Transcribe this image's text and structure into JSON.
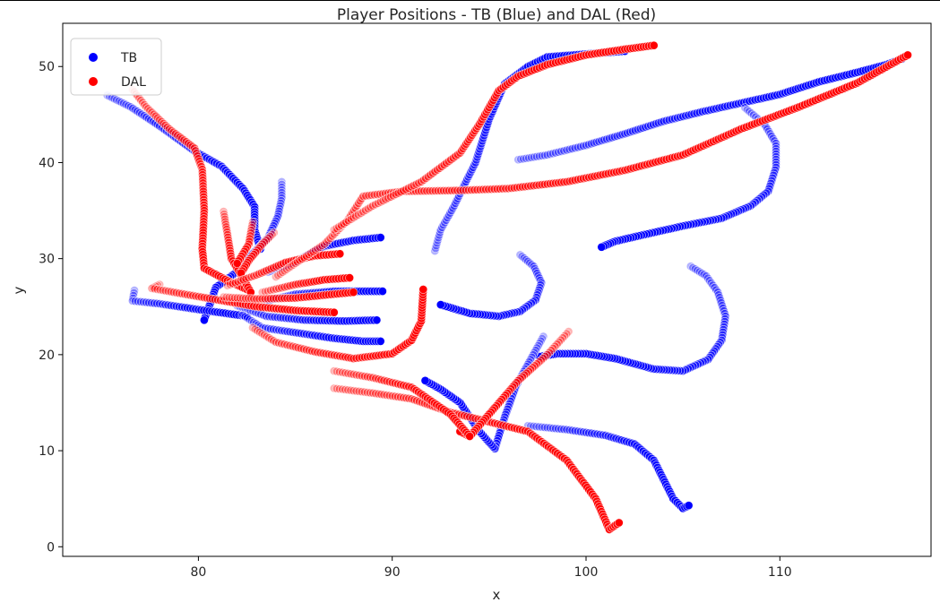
{
  "chart_data": {
    "type": "scatter",
    "title": "Player Positions - TB (Blue) and DAL (Red)",
    "xlabel": "x",
    "ylabel": "y",
    "xlim": [
      73,
      117.8
    ],
    "ylim": [
      -1,
      54.5
    ],
    "xticks": [
      80,
      90,
      100,
      110
    ],
    "yticks": [
      0,
      10,
      20,
      30,
      40,
      50
    ],
    "legend_position": "top-left",
    "grid": false,
    "series": [
      {
        "name": "TB",
        "color": "#0000ff",
        "tracks": [
          [
            [
              75.3,
              47.0
            ],
            [
              76.5,
              45.8
            ],
            [
              78.0,
              43.8
            ],
            [
              79.8,
              41.2
            ],
            [
              81.2,
              39.6
            ],
            [
              82.3,
              37.3
            ],
            [
              82.9,
              35.4
            ],
            [
              82.9,
              33.0
            ],
            [
              83.2,
              31.0
            ]
          ],
          [
            [
              84.3,
              38.0
            ],
            [
              84.3,
              36.3
            ],
            [
              84.1,
              34.4
            ],
            [
              83.6,
              32.2
            ],
            [
              82.8,
              30.5
            ],
            [
              82.1,
              28.8
            ],
            [
              80.9,
              27.0
            ],
            [
              80.6,
              25.3
            ],
            [
              80.3,
              23.6
            ]
          ],
          [
            [
              76.7,
              26.7
            ],
            [
              76.6,
              25.6
            ],
            [
              78.0,
              25.3
            ],
            [
              80.0,
              24.7
            ],
            [
              82.5,
              24.0
            ]
          ],
          [
            [
              83.6,
              28.6
            ],
            [
              85.0,
              29.7
            ],
            [
              86.5,
              31.3
            ],
            [
              88.0,
              31.9
            ],
            [
              89.4,
              32.2
            ]
          ],
          [
            [
              83.5,
              25.6
            ],
            [
              85.0,
              26.3
            ],
            [
              87.0,
              26.6
            ],
            [
              88.5,
              26.6
            ],
            [
              89.5,
              26.6
            ]
          ],
          [
            [
              82.0,
              25.1
            ],
            [
              83.5,
              24.0
            ],
            [
              85.5,
              23.6
            ],
            [
              87.5,
              23.5
            ],
            [
              89.2,
              23.6
            ]
          ],
          [
            [
              82.3,
              24.1
            ],
            [
              83.3,
              22.8
            ],
            [
              85.0,
              22.3
            ],
            [
              87.0,
              21.7
            ],
            [
              88.5,
              21.4
            ],
            [
              89.4,
              21.4
            ]
          ],
          [
            [
              92.2,
              30.8
            ],
            [
              92.5,
              33.0
            ],
            [
              93.2,
              35.5
            ],
            [
              93.8,
              38.0
            ],
            [
              94.3,
              40.0
            ],
            [
              95.0,
              44.5
            ],
            [
              95.8,
              48.2
            ],
            [
              97.0,
              50.0
            ],
            [
              98.0,
              51.0
            ],
            [
              100.0,
              51.3
            ],
            [
              102.0,
              51.6
            ]
          ],
          [
            [
              96.5,
              40.3
            ],
            [
              98.0,
              40.8
            ],
            [
              100.0,
              41.8
            ],
            [
              102.0,
              43.0
            ],
            [
              104.0,
              44.3
            ],
            [
              106.0,
              45.3
            ],
            [
              108.0,
              46.2
            ],
            [
              110.0,
              47.1
            ],
            [
              112.0,
              48.4
            ],
            [
              114.0,
              49.4
            ],
            [
              115.5,
              50.2
            ],
            [
              116.3,
              50.8
            ]
          ],
          [
            [
              108.2,
              45.7
            ],
            [
              109.2,
              44.0
            ],
            [
              109.8,
              42.0
            ],
            [
              109.8,
              39.5
            ],
            [
              109.4,
              37.0
            ],
            [
              108.5,
              35.5
            ],
            [
              107.0,
              34.2
            ],
            [
              105.0,
              33.4
            ],
            [
              103.0,
              32.5
            ],
            [
              101.5,
              31.8
            ],
            [
              100.8,
              31.2
            ]
          ],
          [
            [
              96.6,
              30.4
            ],
            [
              97.3,
              29.2
            ],
            [
              97.7,
              27.5
            ],
            [
              97.4,
              25.7
            ],
            [
              96.6,
              24.5
            ],
            [
              95.5,
              24.0
            ],
            [
              94.0,
              24.3
            ],
            [
              92.5,
              25.2
            ]
          ],
          [
            [
              105.4,
              29.2
            ],
            [
              106.2,
              28.2
            ],
            [
              106.8,
              26.5
            ],
            [
              107.2,
              24.0
            ],
            [
              107.0,
              21.5
            ],
            [
              106.3,
              19.5
            ],
            [
              105.0,
              18.3
            ],
            [
              103.5,
              18.5
            ],
            [
              101.5,
              19.6
            ],
            [
              100.0,
              20.1
            ],
            [
              98.5,
              20.1
            ],
            [
              97.6,
              19.8
            ]
          ],
          [
            [
              97.8,
              21.9
            ],
            [
              97.0,
              19.0
            ],
            [
              96.4,
              16.8
            ],
            [
              95.8,
              13.5
            ],
            [
              95.3,
              10.2
            ],
            [
              94.5,
              12.0
            ],
            [
              93.5,
              15.0
            ],
            [
              92.5,
              16.4
            ],
            [
              91.7,
              17.3
            ]
          ],
          [
            [
              97.0,
              12.6
            ],
            [
              99.0,
              12.2
            ],
            [
              101.0,
              11.6
            ],
            [
              102.5,
              10.7
            ],
            [
              103.5,
              9.0
            ],
            [
              104.0,
              7.0
            ],
            [
              104.5,
              5.0
            ],
            [
              105.0,
              4.0
            ],
            [
              105.3,
              4.3
            ]
          ]
        ]
      },
      {
        "name": "DAL",
        "color": "#ff0000",
        "tracks": [
          [
            [
              76.6,
              47.6
            ],
            [
              77.3,
              45.8
            ],
            [
              78.5,
              43.5
            ],
            [
              79.8,
              41.5
            ],
            [
              80.2,
              39.3
            ],
            [
              80.3,
              35.0
            ],
            [
              80.2,
              31.0
            ],
            [
              80.3,
              29.0
            ],
            [
              81.5,
              27.7
            ],
            [
              82.5,
              26.8
            ]
          ],
          [
            [
              81.3,
              34.9
            ],
            [
              81.5,
              32.5
            ],
            [
              81.7,
              30.0
            ],
            [
              82.2,
              28.3
            ],
            [
              82.7,
              26.5
            ]
          ],
          [
            [
              82.8,
              33.8
            ],
            [
              82.6,
              31.5
            ],
            [
              82.0,
              29.5
            ]
          ],
          [
            [
              83.9,
              32.7
            ],
            [
              83.3,
              31.5
            ],
            [
              82.6,
              29.8
            ],
            [
              82.2,
              28.5
            ]
          ],
          [
            [
              78.0,
              27.3
            ],
            [
              77.6,
              26.9
            ],
            [
              79.0,
              26.4
            ],
            [
              81.0,
              25.7
            ],
            [
              83.0,
              25.0
            ],
            [
              85.0,
              24.6
            ],
            [
              87.0,
              24.4
            ]
          ],
          [
            [
              81.5,
              27.2
            ],
            [
              83.0,
              28.3
            ],
            [
              84.5,
              29.6
            ],
            [
              86.0,
              30.3
            ],
            [
              87.3,
              30.5
            ]
          ],
          [
            [
              83.3,
              26.5
            ],
            [
              85.0,
              27.3
            ],
            [
              86.5,
              27.8
            ],
            [
              87.8,
              28.0
            ]
          ],
          [
            [
              81.3,
              26.0
            ],
            [
              83.0,
              25.8
            ],
            [
              85.0,
              25.9
            ],
            [
              87.0,
              26.3
            ],
            [
              88.0,
              26.5
            ]
          ],
          [
            [
              82.8,
              22.8
            ],
            [
              84.0,
              21.3
            ],
            [
              86.0,
              20.3
            ],
            [
              88.0,
              19.6
            ],
            [
              90.0,
              20.1
            ],
            [
              91.0,
              21.5
            ],
            [
              91.5,
              23.5
            ],
            [
              91.6,
              26.8
            ]
          ],
          [
            [
              84.0,
              28.1
            ],
            [
              85.0,
              29.5
            ],
            [
              86.5,
              31.5
            ],
            [
              87.7,
              34.0
            ],
            [
              88.5,
              36.5
            ],
            [
              90.5,
              37.0
            ],
            [
              93.5,
              37.1
            ],
            [
              96.0,
              37.3
            ],
            [
              99.0,
              38.0
            ],
            [
              102.0,
              39.2
            ],
            [
              105.0,
              40.8
            ],
            [
              108.0,
              43.5
            ],
            [
              111.0,
              45.8
            ],
            [
              114.0,
              48.3
            ],
            [
              116.6,
              51.2
            ]
          ],
          [
            [
              87.0,
              33.0
            ],
            [
              89.0,
              35.5
            ],
            [
              91.5,
              38.0
            ],
            [
              93.5,
              41.0
            ],
            [
              94.5,
              44.0
            ],
            [
              95.5,
              47.5
            ],
            [
              96.5,
              49.0
            ],
            [
              98.0,
              50.2
            ],
            [
              100.0,
              51.2
            ],
            [
              102.0,
              51.8
            ],
            [
              103.5,
              52.2
            ]
          ],
          [
            [
              87.0,
              16.5
            ],
            [
              89.0,
              16.0
            ],
            [
              91.0,
              15.4
            ],
            [
              93.0,
              14.0
            ],
            [
              95.0,
              13.0
            ],
            [
              97.0,
              12.0
            ],
            [
              99.0,
              9.0
            ],
            [
              100.5,
              5.0
            ],
            [
              101.2,
              1.8
            ],
            [
              101.7,
              2.5
            ]
          ],
          [
            [
              99.1,
              22.4
            ],
            [
              98.0,
              20.0
            ],
            [
              96.5,
              17.3
            ],
            [
              95.0,
              13.8
            ],
            [
              94.0,
              11.5
            ],
            [
              93.5,
              12.0
            ]
          ],
          [
            [
              87.0,
              18.3
            ],
            [
              89.0,
              17.6
            ],
            [
              91.0,
              16.6
            ],
            [
              93.0,
              13.8
            ],
            [
              94.0,
              11.5
            ]
          ]
        ]
      }
    ]
  }
}
